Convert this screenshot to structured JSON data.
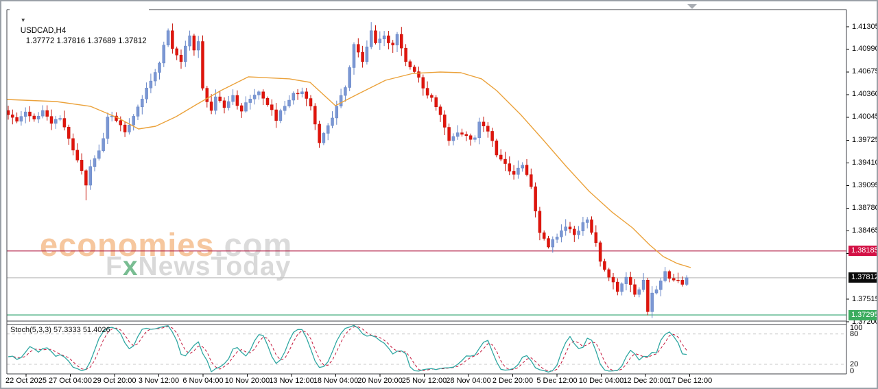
{
  "window": {
    "arrow_glyph": "▼",
    "symbol": "USDCAD,H4",
    "ohlc_text": "1.37772 1.37816 1.37689 1.37812"
  },
  "watermark": {
    "brand": "economies",
    "domain": ".com",
    "line2_f": "F",
    "line2_x": "x",
    "line2_rest": "NewsToday",
    "brand_color": "#F6C79E",
    "domain_color": "#DBDBDB",
    "gray_color": "#D9D9D9",
    "x_color": "#79BD92"
  },
  "chart_data": {
    "type": "candlestick",
    "symbol": "USDCAD",
    "timeframe": "H4",
    "current_ohlc": {
      "open": 1.37772,
      "high": 1.37816,
      "low": 1.37689,
      "close": 1.37812
    },
    "y_axis": {
      "tick_labels": [
        "1.41305",
        "1.40990",
        "1.40675",
        "1.40360",
        "1.40045",
        "1.39725",
        "1.39410",
        "1.39095",
        "1.38780",
        "1.38465",
        "1.38150",
        "1.37515",
        "1.37200"
      ],
      "top_tick_price": 1.41305,
      "bottom_tick_price": 1.372
    },
    "x_axis": {
      "labels": [
        "22 Oct 2025",
        "27 Oct 04:00",
        "29 Oct 20:00",
        "3 Nov 12:00",
        "6 Nov 04:00",
        "10 Nov 20:00",
        "13 Nov 12:00",
        "18 Nov 04:00",
        "20 Nov 20:00",
        "25 Nov 12:00",
        "28 Nov 04:00",
        "2 Dec 20:00",
        "5 Dec 12:00",
        "10 Dec 04:00",
        "12 Dec 20:00",
        "17 Dec 12:00"
      ]
    },
    "levels": [
      {
        "name": "resistance",
        "label": "1.38185",
        "value": 1.38185,
        "line_color": "#B01E45",
        "badge_color": "#D31145"
      },
      {
        "name": "current-price",
        "label": "1.37812",
        "value": 1.37812,
        "line_color": "#C2C2C2",
        "badge_color": "#0A0A0A"
      },
      {
        "name": "support",
        "label": "1.37295",
        "value": 1.37295,
        "line_color": "#2AA06B",
        "badge_color": "#3CAC5F"
      }
    ],
    "colors": {
      "up_fill": "#7B97D3",
      "up_border": "#6484C6",
      "down_fill": "#E0140C",
      "down_border": "#C61208",
      "ma": "#EBA23B",
      "stoch_k": "#2FA7A2",
      "stoch_d": "#C4183C",
      "stoch_level": "#C9C9C9",
      "frame": "#3C3F45",
      "tick": "#000000"
    },
    "candles": {
      "count": 158,
      "close_anchors": [
        [
          0,
          1.4008
        ],
        [
          2,
          1.3999
        ],
        [
          4,
          1.4012
        ],
        [
          6,
          1.4002
        ],
        [
          8,
          1.4014
        ],
        [
          10,
          1.3996
        ],
        [
          12,
          1.4003
        ],
        [
          14,
          1.3975
        ],
        [
          16,
          1.3945
        ],
        [
          18,
          1.391
        ],
        [
          19,
          1.3936
        ],
        [
          21,
          1.3958
        ],
        [
          22,
          1.3975
        ],
        [
          23,
          1.4005
        ],
        [
          25,
          1.4
        ],
        [
          27,
          1.3984
        ],
        [
          29,
          1.4006
        ],
        [
          31,
          1.403
        ],
        [
          33,
          1.4055
        ],
        [
          35,
          1.408
        ],
        [
          36,
          1.4105
        ],
        [
          37,
          1.4125
        ],
        [
          38,
          1.41
        ],
        [
          40,
          1.4082
        ],
        [
          42,
          1.4118
        ],
        [
          43,
          1.4098
        ],
        [
          44,
          1.411
        ],
        [
          45,
          1.4045
        ],
        [
          46,
          1.4026
        ],
        [
          47,
          1.4014
        ],
        [
          48,
          1.4033
        ],
        [
          50,
          1.4018
        ],
        [
          52,
          1.4035
        ],
        [
          54,
          1.4013
        ],
        [
          56,
          1.403
        ],
        [
          58,
          1.404
        ],
        [
          60,
          1.4022
        ],
        [
          62,
          1.4
        ],
        [
          64,
          1.402
        ],
        [
          66,
          1.4038
        ],
        [
          68,
          1.404
        ],
        [
          70,
          1.402
        ],
        [
          71,
          1.3995
        ],
        [
          72,
          1.3969
        ],
        [
          74,
          1.3993
        ],
        [
          76,
          1.402
        ],
        [
          78,
          1.4046
        ],
        [
          80,
          1.4106
        ],
        [
          82,
          1.4082
        ],
        [
          84,
          1.4125
        ],
        [
          85,
          1.4108
        ],
        [
          87,
          1.4118
        ],
        [
          89,
          1.4105
        ],
        [
          90,
          1.412
        ],
        [
          92,
          1.4082
        ],
        [
          94,
          1.4068
        ],
        [
          96,
          1.4045
        ],
        [
          98,
          1.4032
        ],
        [
          100,
          1.4008
        ],
        [
          102,
          1.3972
        ],
        [
          104,
          1.3983
        ],
        [
          106,
          1.3979
        ],
        [
          108,
          1.3976
        ],
        [
          109,
          1.3998
        ],
        [
          111,
          1.3985
        ],
        [
          113,
          1.3952
        ],
        [
          115,
          1.394
        ],
        [
          117,
          1.3925
        ],
        [
          119,
          1.3938
        ],
        [
          121,
          1.3908
        ],
        [
          122,
          1.3874
        ],
        [
          123,
          1.3844
        ],
        [
          125,
          1.3824
        ],
        [
          127,
          1.3838
        ],
        [
          129,
          1.3852
        ],
        [
          131,
          1.3841
        ],
        [
          133,
          1.3858
        ],
        [
          134,
          1.3862
        ],
        [
          136,
          1.383
        ],
        [
          137,
          1.3804
        ],
        [
          139,
          1.3782
        ],
        [
          141,
          1.3762
        ],
        [
          143,
          1.3782
        ],
        [
          145,
          1.3758
        ],
        [
          147,
          1.3778
        ],
        [
          148,
          1.3734
        ],
        [
          149,
          1.376
        ],
        [
          151,
          1.3777
        ],
        [
          152,
          1.379
        ],
        [
          154,
          1.3778
        ],
        [
          156,
          1.3772
        ],
        [
          157,
          1.37812
        ]
      ],
      "wick_overrides": {
        "18": {
          "low": 1.3889
        },
        "38": {
          "high": 1.4135
        },
        "84": {
          "high": 1.4137
        },
        "148": {
          "low": 1.3729
        }
      }
    },
    "ma": {
      "points": [
        [
          8,
          1.40293
        ],
        [
          80,
          1.40264
        ],
        [
          130,
          1.40198
        ],
        [
          170,
          1.40036
        ],
        [
          200,
          1.39883
        ],
        [
          225,
          1.39921
        ],
        [
          255,
          1.40055
        ],
        [
          285,
          1.40226
        ],
        [
          320,
          1.40417
        ],
        [
          360,
          1.40608
        ],
        [
          420,
          1.4058
        ],
        [
          450,
          1.40532
        ],
        [
          487,
          1.40207
        ],
        [
          520,
          1.40369
        ],
        [
          560,
          1.4056
        ],
        [
          600,
          1.40656
        ],
        [
          640,
          1.40675
        ],
        [
          670,
          1.40665
        ],
        [
          700,
          1.4058
        ],
        [
          722,
          1.40417
        ],
        [
          757,
          1.40083
        ],
        [
          790,
          1.3973
        ],
        [
          823,
          1.39367
        ],
        [
          857,
          1.39014
        ],
        [
          890,
          1.38728
        ],
        [
          920,
          1.38508
        ],
        [
          945,
          1.3827
        ],
        [
          965,
          1.38107
        ],
        [
          985,
          1.38012
        ],
        [
          1005,
          1.37954
        ]
      ]
    },
    "stoch": {
      "name": "Stoch(5,3,3)",
      "k_display": "57.3333",
      "d_display": "51.4026",
      "k": 57.3333,
      "d": 51.4026,
      "levels": [
        80,
        20
      ],
      "scale_labels": [
        "100",
        "80",
        "20",
        "0"
      ]
    }
  }
}
